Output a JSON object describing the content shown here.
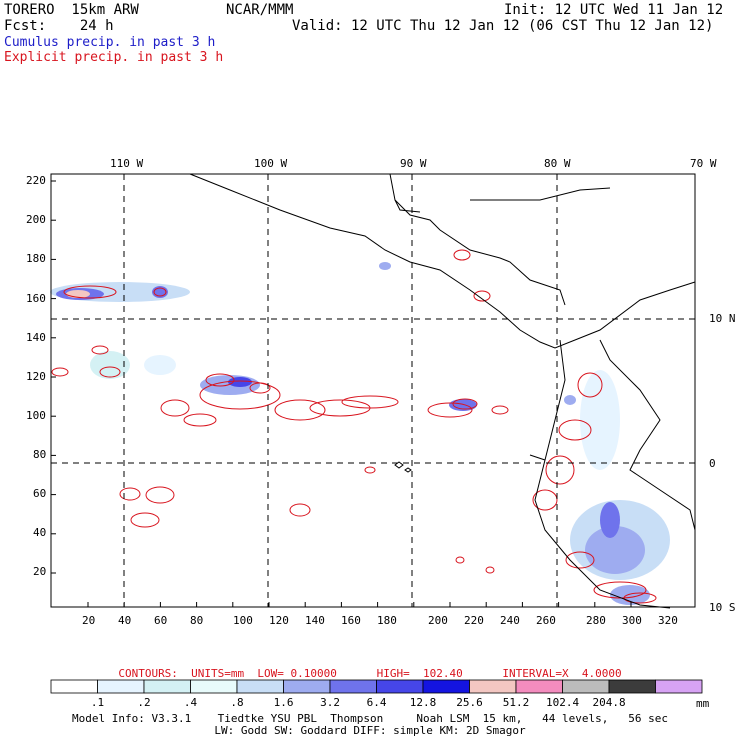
{
  "header": {
    "model": "TORERO  15km ARW",
    "center": "NCAR/MMM",
    "init": "Init: 12 UTC Wed 11 Jan 12",
    "fcst": "Fcst:    24 h",
    "valid": "Valid: 12 UTC Thu 12 Jan 12 (06 CST Thu 12 Jan 12)",
    "field1": "Cumulus precip. in past 3 h",
    "field2": "Explicit precip. in past 3 h"
  },
  "map": {
    "lon_labels": [
      "110 W",
      "100 W",
      "90 W",
      "80 W",
      "70 W"
    ],
    "lat_labels": [
      "10 N",
      "0",
      "10 S"
    ],
    "y_ticks": [
      "220",
      "200",
      "180",
      "160",
      "140",
      "120",
      "100",
      "80",
      "60",
      "40",
      "20"
    ],
    "x_ticks": [
      "20",
      "40",
      "60",
      "80",
      "100",
      "120",
      "140",
      "160",
      "180",
      "200",
      "220",
      "240",
      "260",
      "280",
      "300",
      "320"
    ]
  },
  "contours": {
    "units": "CONTOURS:  UNITS=mm  LOW= 0.10000      HIGH=  102.40      INTERVAL=X  4.0000"
  },
  "colorbar": {
    "colors": [
      "#ffffff",
      "#e6f4ff",
      "#d4f1f4",
      "#e8fbfb",
      "#c8def6",
      "#9eacf0",
      "#6f73ec",
      "#4646e8",
      "#1414e0",
      "#f3c7c2",
      "#f38cbe",
      "#bcbcbc",
      "#3c3c3c",
      "#d7a3f4"
    ],
    "labels": [
      ".1",
      ".2",
      ".4",
      ".8",
      "1.6",
      "3.2",
      "6.4",
      "12.8",
      "25.6",
      "51.2",
      "102.4",
      "204.8"
    ],
    "unit": "mm"
  },
  "footer": {
    "line1": "Model Info: V3.3.1    Tiedtke YSU PBL  Thompson     Noah LSM  15 km,   44 levels,   56 sec",
    "line2": "LW: Godd SW: Goddard DIFF: simple KM: 2D Smagor"
  }
}
